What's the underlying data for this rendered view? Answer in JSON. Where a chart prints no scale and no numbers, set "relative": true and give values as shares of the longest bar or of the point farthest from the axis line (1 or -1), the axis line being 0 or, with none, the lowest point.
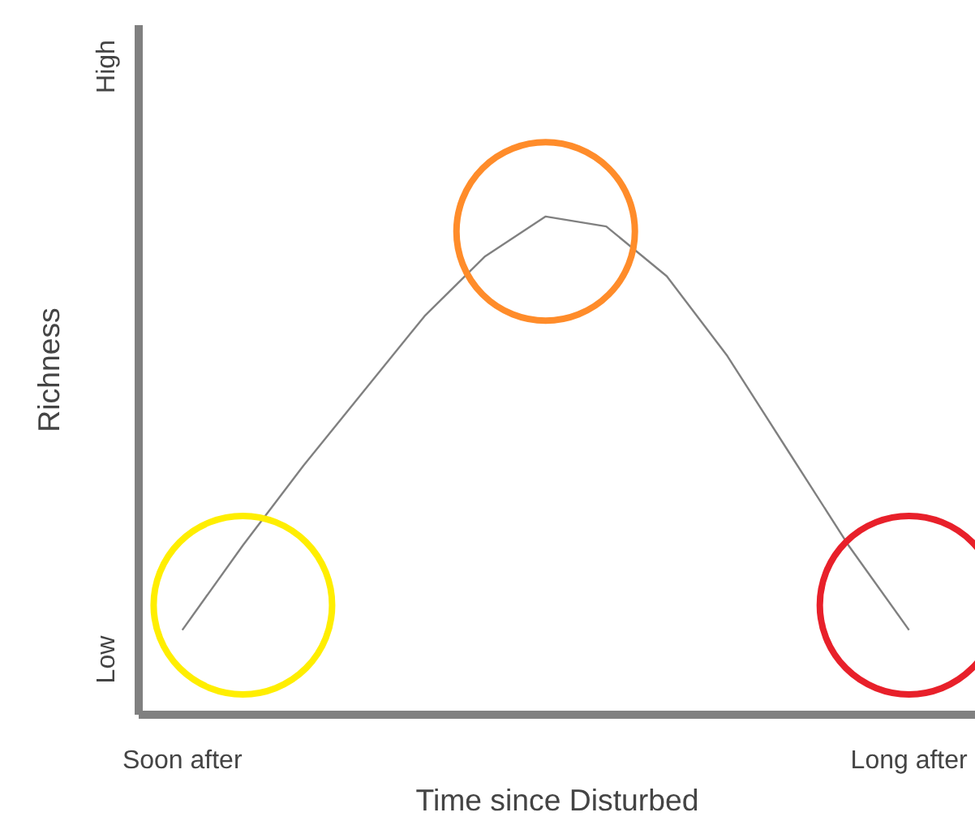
{
  "chart_data": {
    "type": "line",
    "relative": true,
    "xlabel": "Time since Disturbed",
    "ylabel": "Richness",
    "categories": [
      "Soon after",
      null,
      null,
      null,
      null,
      null,
      null,
      null,
      null,
      null,
      null,
      null,
      "Long after"
    ],
    "annotations": [
      "Low",
      "High"
    ],
    "series": [
      {
        "color": "#808080",
        "values": [
          0.17,
          0.34,
          0.5,
          0.65,
          0.8,
          0.92,
          1.0,
          0.98,
          0.88,
          0.72,
          0.53,
          0.34,
          0.17
        ]
      },
      {
        "type": "scatter",
        "marker": "circle",
        "color": "#ffee00",
        "values": [
          null,
          0.22,
          null,
          null,
          null,
          null,
          null,
          null,
          null,
          null,
          null,
          null,
          null
        ]
      },
      {
        "type": "scatter",
        "marker": "circle",
        "color": "#ff8c2a",
        "values": [
          null,
          null,
          null,
          null,
          null,
          null,
          0.97,
          null,
          null,
          null,
          null,
          null,
          null
        ]
      },
      {
        "type": "scatter",
        "marker": "circle",
        "color": "#e8202a",
        "values": [
          null,
          null,
          null,
          null,
          null,
          null,
          null,
          null,
          null,
          null,
          null,
          null,
          0.22
        ]
      }
    ],
    "grid": false
  }
}
